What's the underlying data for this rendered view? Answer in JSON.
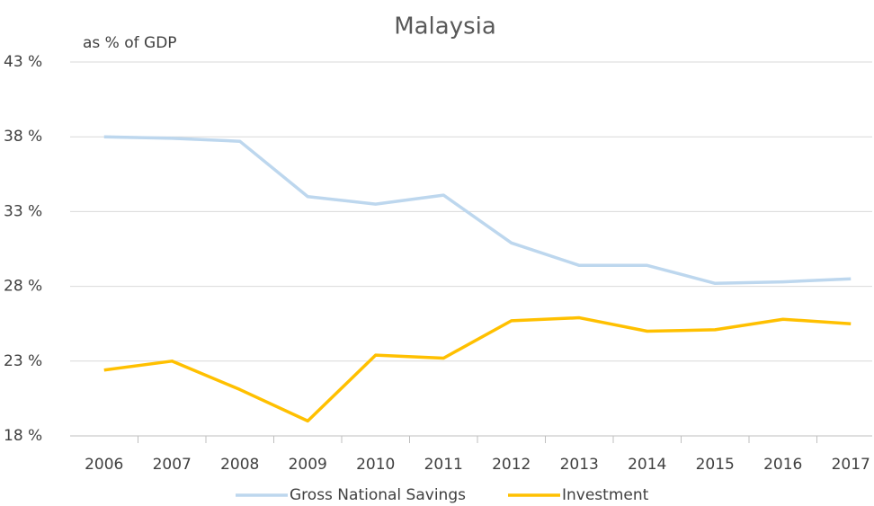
{
  "chart_data": {
    "type": "line",
    "title": "Malaysia",
    "y_label": "as % of GDP",
    "categories": [
      "2006",
      "2007",
      "2008",
      "2009",
      "2010",
      "2011",
      "2012",
      "2013",
      "2014",
      "2015",
      "2016",
      "2017"
    ],
    "series": [
      {
        "name": "Gross National Savings",
        "color": "#bdd7ee",
        "values": [
          38.0,
          37.9,
          37.7,
          34.0,
          33.5,
          34.1,
          30.9,
          29.4,
          29.4,
          28.2,
          28.3,
          28.5
        ]
      },
      {
        "name": "Investment",
        "color": "#ffc000",
        "values": [
          22.4,
          23.0,
          21.1,
          19.0,
          23.4,
          23.2,
          25.7,
          25.9,
          25.0,
          25.1,
          25.8,
          25.5
        ]
      }
    ],
    "ylim": [
      18,
      43
    ],
    "yticks": [
      {
        "value": 18,
        "label": "18 %"
      },
      {
        "value": 23,
        "label": "23 %"
      },
      {
        "value": 28,
        "label": "28 %"
      },
      {
        "value": 33,
        "label": "33 %"
      },
      {
        "value": 38,
        "label": "38 %"
      },
      {
        "value": 43,
        "label": "43 %"
      }
    ],
    "grid": true,
    "legend": "bottom"
  }
}
